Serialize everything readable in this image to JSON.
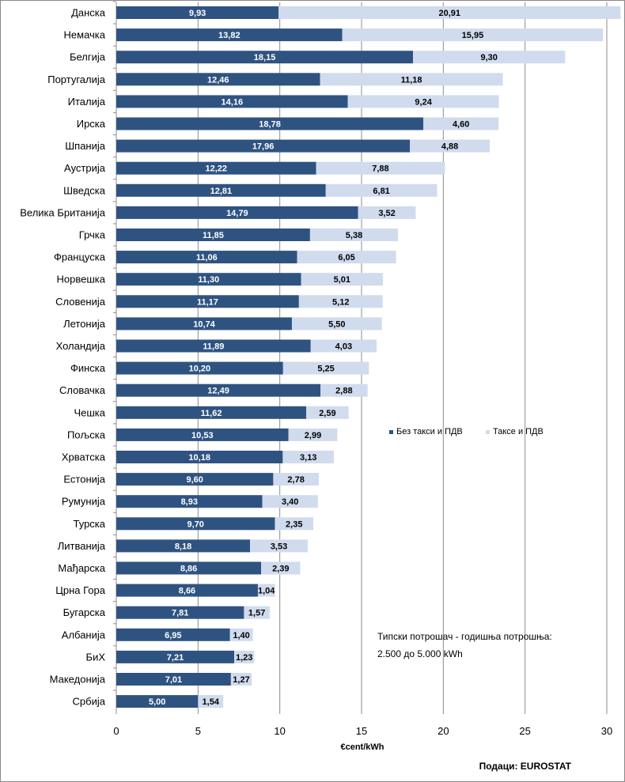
{
  "chart_data": {
    "type": "bar",
    "orientation": "horizontal",
    "stacked": true,
    "categories": [
      "Данска",
      "Немачка",
      "Белгија",
      "Португалија",
      "Италија",
      "Ирска",
      "Шпанија",
      "Аустрија",
      "Шведска",
      "Велика Британија",
      "Грчка",
      "Француска",
      "Норвешка",
      "Словенија",
      "Летонија",
      "Холандија",
      "Финска",
      "Словачка",
      "Чешка",
      "Пољска",
      "Хрватска",
      "Естонија",
      "Румунија",
      "Турска",
      "Литванија",
      "Мађарска",
      "Црна Гора",
      "Бугарска",
      "Албанија",
      "БиХ",
      "Македонија",
      "Србија"
    ],
    "series": [
      {
        "name": "Без такси и ПДВ",
        "color": "#2f5381",
        "values": [
          9.93,
          13.82,
          18.15,
          12.46,
          14.16,
          18.78,
          17.96,
          12.22,
          12.81,
          14.79,
          11.85,
          11.06,
          11.3,
          11.17,
          10.74,
          11.89,
          10.2,
          12.49,
          11.62,
          10.53,
          10.18,
          9.6,
          8.93,
          9.7,
          8.18,
          8.86,
          8.66,
          7.81,
          6.95,
          7.21,
          7.01,
          5.0
        ],
        "labels": [
          "9,93",
          "13,82",
          "18,15",
          "12,46",
          "14,16",
          "18,78",
          "17,96",
          "12,22",
          "12,81",
          "14,79",
          "11,85",
          "11,06",
          "11,30",
          "11,17",
          "10,74",
          "11,89",
          "10,20",
          "12,49",
          "11,62",
          "10,53",
          "10,18",
          "9,60",
          "8,93",
          "9,70",
          "8,18",
          "8,86",
          "8,66",
          "7,81",
          "6,95",
          "7,21",
          "7,01",
          "5,00"
        ]
      },
      {
        "name": "Таксе и ПДВ",
        "color": "#d0dbee",
        "values": [
          20.91,
          15.95,
          9.3,
          11.18,
          9.24,
          4.6,
          4.88,
          7.88,
          6.81,
          3.52,
          5.38,
          6.05,
          5.01,
          5.12,
          5.5,
          4.03,
          5.25,
          2.88,
          2.59,
          2.99,
          3.13,
          2.78,
          3.4,
          2.35,
          3.53,
          2.39,
          1.04,
          1.57,
          1.4,
          1.23,
          1.27,
          1.54
        ],
        "labels": [
          "20,91",
          "15,95",
          "9,30",
          "11,18",
          "9,24",
          "4,60",
          "4,88",
          "7,88",
          "6,81",
          "3,52",
          "5,38",
          "6,05",
          "5,01",
          "5,12",
          "5,50",
          "4,03",
          "5,25",
          "2,88",
          "2,59",
          "2,99",
          "3,13",
          "2,78",
          "3,40",
          "2,35",
          "3,53",
          "2,39",
          "1,04",
          "1,57",
          "1,40",
          "1,23",
          "1,27",
          "1,54"
        ]
      }
    ],
    "xlim": [
      0,
      30
    ],
    "xticks": [
      0,
      5,
      10,
      15,
      20,
      25,
      30
    ],
    "xlabel": "€cent/kWh",
    "ylabel": "",
    "grid": "vertical",
    "legend_position": "right-middle"
  },
  "note": {
    "line1": "Типски потрошач - годишња потрошња:",
    "line2": "2.500 до 5.000 kWh"
  },
  "source": "Подаци: EUROSTAT"
}
